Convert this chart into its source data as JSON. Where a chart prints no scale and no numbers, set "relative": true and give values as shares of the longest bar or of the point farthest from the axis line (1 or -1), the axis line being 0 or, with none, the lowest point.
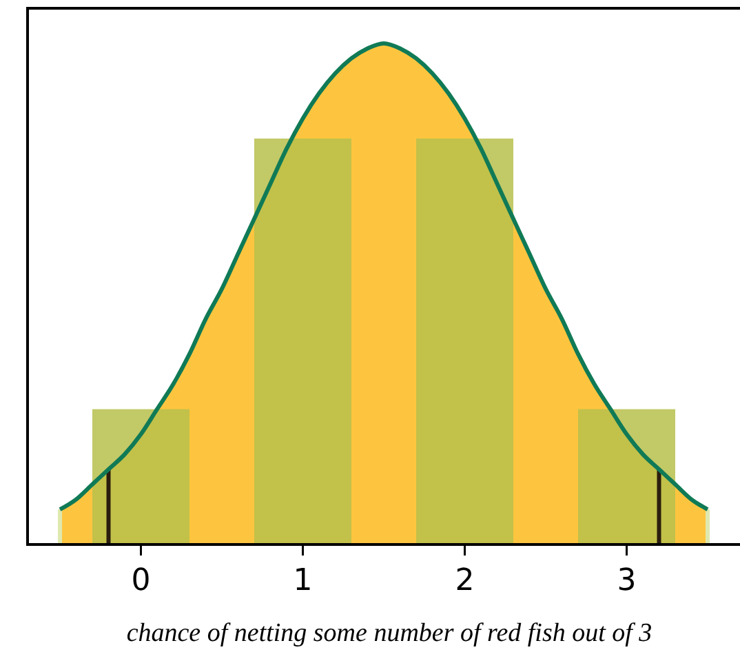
{
  "chart_data": {
    "type": "bar",
    "relative": true,
    "xlabel": "chance of netting some number of red fish out of 3",
    "xlim": [
      -0.7,
      3.7
    ],
    "xticks": [
      0,
      1,
      2,
      3
    ],
    "tick_labels": "x",
    "grid": false,
    "series": [
      {
        "type": "area",
        "color": "#fdc53f",
        "x": [
          -0.5,
          -0.4,
          -0.3,
          -0.2,
          -0.1,
          0,
          0.1,
          0.2,
          0.3,
          0.4,
          0.5,
          0.6,
          0.7,
          0.8,
          0.9,
          1,
          1.1,
          1.2,
          1.3,
          1.4,
          1.5,
          1.6,
          1.7,
          1.8,
          1.9,
          2,
          2.1,
          2.2,
          2.3,
          2.4,
          2.5,
          2.6,
          2.7,
          2.8,
          2.9,
          3,
          3.1,
          3.2,
          3.3,
          3.4,
          3.5
        ],
        "values": [
          0.07,
          0.09,
          0.12,
          0.15,
          0.18,
          0.22,
          0.27,
          0.32,
          0.38,
          0.45,
          0.51,
          0.58,
          0.65,
          0.72,
          0.79,
          0.85,
          0.9,
          0.94,
          0.97,
          0.99,
          1,
          0.99,
          0.97,
          0.94,
          0.9,
          0.85,
          0.79,
          0.72,
          0.65,
          0.58,
          0.51,
          0.45,
          0.38,
          0.32,
          0.27,
          0.22,
          0.18,
          0.15,
          0.12,
          0.09,
          0.07
        ]
      },
      {
        "color": "#b7c04c",
        "x": [
          0,
          1,
          2,
          3
        ],
        "values": [
          0.27,
          0.81,
          0.81,
          0.27
        ]
      },
      {
        "type": "line",
        "color": "#2b1d0e",
        "x": [
          -0.2,
          -0.2
        ],
        "values": [
          0,
          0.15
        ]
      },
      {
        "type": "line",
        "color": "#2b1d0e",
        "x": [
          3.2,
          3.2
        ],
        "values": [
          0,
          0.15
        ]
      },
      {
        "type": "line",
        "color": "#dfe8ae",
        "x": [
          -0.5,
          -0.5
        ],
        "values": [
          0,
          0.07
        ]
      },
      {
        "type": "line",
        "color": "#dfe8ae",
        "x": [
          3.5,
          3.5
        ],
        "values": [
          0,
          0.07
        ]
      },
      {
        "type": "line",
        "color": "#107a56",
        "x": [
          -0.5,
          -0.4,
          -0.3,
          -0.2,
          -0.1,
          0,
          0.1,
          0.2,
          0.3,
          0.4,
          0.5,
          0.6,
          0.7,
          0.8,
          0.9,
          1,
          1.1,
          1.2,
          1.3,
          1.4,
          1.5,
          1.6,
          1.7,
          1.8,
          1.9,
          2,
          2.1,
          2.2,
          2.3,
          2.4,
          2.5,
          2.6,
          2.7,
          2.8,
          2.9,
          3,
          3.1,
          3.2,
          3.3,
          3.4,
          3.5
        ],
        "values": [
          0.07,
          0.09,
          0.12,
          0.15,
          0.18,
          0.22,
          0.27,
          0.32,
          0.38,
          0.45,
          0.51,
          0.58,
          0.65,
          0.72,
          0.79,
          0.85,
          0.9,
          0.94,
          0.97,
          0.99,
          1,
          0.99,
          0.97,
          0.94,
          0.9,
          0.85,
          0.79,
          0.72,
          0.65,
          0.58,
          0.51,
          0.45,
          0.38,
          0.32,
          0.27,
          0.22,
          0.18,
          0.15,
          0.12,
          0.09,
          0.07
        ]
      }
    ]
  }
}
